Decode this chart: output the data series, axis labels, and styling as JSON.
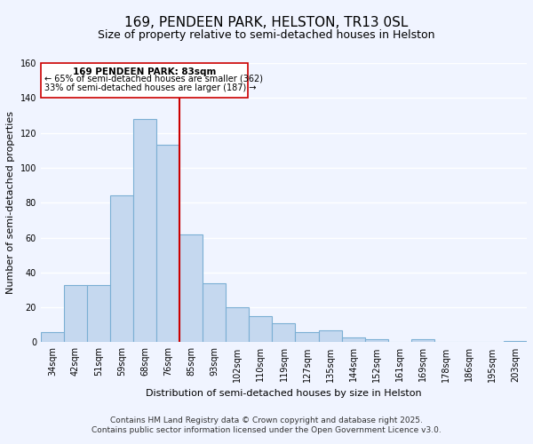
{
  "title": "169, PENDEEN PARK, HELSTON, TR13 0SL",
  "subtitle": "Size of property relative to semi-detached houses in Helston",
  "xlabel": "Distribution of semi-detached houses by size in Helston",
  "ylabel": "Number of semi-detached properties",
  "categories": [
    "34sqm",
    "42sqm",
    "51sqm",
    "59sqm",
    "68sqm",
    "76sqm",
    "85sqm",
    "93sqm",
    "102sqm",
    "110sqm",
    "119sqm",
    "127sqm",
    "135sqm",
    "144sqm",
    "152sqm",
    "161sqm",
    "169sqm",
    "178sqm",
    "186sqm",
    "195sqm",
    "203sqm"
  ],
  "values": [
    6,
    33,
    33,
    84,
    128,
    113,
    62,
    34,
    20,
    15,
    11,
    6,
    7,
    3,
    2,
    0,
    2,
    0,
    0,
    0,
    1
  ],
  "bar_color": "#c5d8ef",
  "bar_edge_color": "#7bafd4",
  "background_color": "#f0f4ff",
  "grid_color": "#ffffff",
  "vline_color": "#cc0000",
  "annotation_title": "169 PENDEEN PARK: 83sqm",
  "annotation_line1": "← 65% of semi-detached houses are smaller (362)",
  "annotation_line2": "33% of semi-detached houses are larger (187) →",
  "ylim": [
    0,
    160
  ],
  "yticks": [
    0,
    20,
    40,
    60,
    80,
    100,
    120,
    140,
    160
  ],
  "footer1": "Contains HM Land Registry data © Crown copyright and database right 2025.",
  "footer2": "Contains public sector information licensed under the Open Government Licence v3.0.",
  "title_fontsize": 11,
  "subtitle_fontsize": 9,
  "axis_fontsize": 8,
  "tick_fontsize": 7,
  "footer_fontsize": 6.5,
  "vline_bin_index": 6
}
